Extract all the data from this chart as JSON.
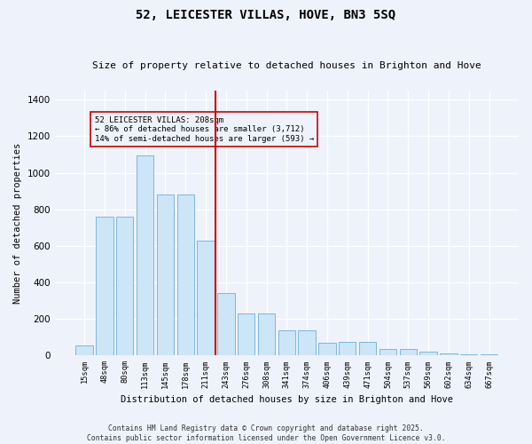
{
  "title": "52, LEICESTER VILLAS, HOVE, BN3 5SQ",
  "subtitle": "Size of property relative to detached houses in Brighton and Hove",
  "xlabel": "Distribution of detached houses by size in Brighton and Hove",
  "ylabel": "Number of detached properties",
  "bar_labels": [
    "15sqm",
    "48sqm",
    "80sqm",
    "113sqm",
    "145sqm",
    "178sqm",
    "211sqm",
    "243sqm",
    "276sqm",
    "308sqm",
    "341sqm",
    "374sqm",
    "406sqm",
    "439sqm",
    "471sqm",
    "504sqm",
    "537sqm",
    "569sqm",
    "602sqm",
    "634sqm",
    "667sqm"
  ],
  "bar_heights": [
    55,
    760,
    760,
    1095,
    880,
    880,
    630,
    340,
    230,
    230,
    140,
    140,
    70,
    75,
    75,
    35,
    35,
    20,
    12,
    8,
    8
  ],
  "bar_color": "#cce5f7",
  "bar_edgecolor": "#7ab8e0",
  "vline_x": 6.5,
  "annotation_text_line1": "52 LEICESTER VILLAS: 208sqm",
  "annotation_text_line2": "← 86% of detached houses are smaller (3,712)",
  "annotation_text_line3": "14% of semi-detached houses are larger (593) →",
  "vline_color": "#cc0000",
  "annotation_box_edgecolor": "#cc0000",
  "ylim": [
    0,
    1450
  ],
  "yticks": [
    0,
    200,
    400,
    600,
    800,
    1000,
    1200,
    1400
  ],
  "footer_line1": "Contains HM Land Registry data © Crown copyright and database right 2025.",
  "footer_line2": "Contains public sector information licensed under the Open Government Licence v3.0.",
  "background_color": "#eef2fb",
  "grid_color": "#ffffff"
}
